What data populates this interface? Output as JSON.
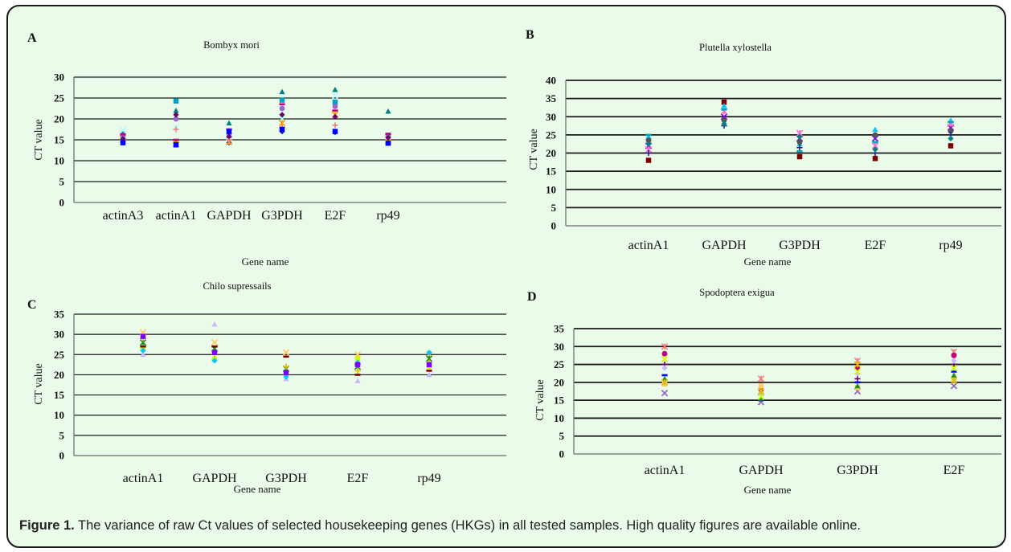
{
  "caption": {
    "label": "Figure 1.",
    "text": " The variance of raw Ct values of selected housekeeping genes (HKGs) in all tested samples. High quality figures are available online."
  },
  "colors": {
    "background": "#eafbea",
    "border": "#1a1a1a",
    "markers": [
      "#1f1f8f",
      "#c0007f",
      "#e0c000",
      "#00a0c0",
      "#6a006a",
      "#7a0000",
      "#008080",
      "#0000ff",
      "#00c8ff",
      "#b0ffff",
      "#c8b8ff",
      "#7f00ff",
      "#ff9900",
      "#ffcc66",
      "#ff66cc",
      "#9966cc",
      "#228b22",
      "#555555",
      "#f08080",
      "#ccff00"
    ]
  },
  "chart_data": [
    {
      "panel": "A",
      "type": "scatter",
      "title": "Bombyx mori",
      "xlabel": "Gene name",
      "ylabel": "CT value",
      "ylim": [
        0,
        30
      ],
      "yticks": [
        0,
        5,
        10,
        15,
        20,
        25,
        30
      ],
      "grid": true,
      "categories": [
        "actinA3",
        "actinA1",
        "GAPDH",
        "G3PDH",
        "E2F",
        "rp49"
      ],
      "series": [
        {
          "values": [
            14.5,
            14.2,
            14.3,
            17.0,
            16.8,
            14.8
          ]
        },
        {
          "values": [
            15.0,
            24.3,
            16.0,
            24.5,
            24.0,
            16.1
          ]
        },
        {
          "values": [
            16.8,
            22.0,
            19.0,
            26.5,
            27.0,
            21.8
          ]
        },
        {
          "values": [
            17.3,
            18.0,
            15.5,
            20.0,
            25.5,
            15.2
          ]
        },
        {
          "values": [
            15.5,
            14.0,
            14.5,
            19.0,
            21.0,
            14.5
          ]
        },
        {
          "values": [
            16.0,
            20.0,
            16.5,
            22.5,
            23.0,
            15.8
          ]
        },
        {
          "values": [
            14.8,
            17.5,
            15.0,
            18.0,
            18.5,
            14.3
          ]
        },
        {
          "values": [
            16.3,
            15.0,
            17.5,
            23.5,
            22.0,
            16.4
          ]
        },
        {
          "values": [
            15.2,
            21.0,
            15.8,
            21.0,
            20.5,
            15.5
          ]
        },
        {
          "values": [
            14.3,
            13.8,
            17.0,
            17.5,
            17.0,
            14.2
          ]
        }
      ]
    },
    {
      "panel": "B",
      "type": "scatter",
      "title": "Plutella xylostella",
      "xlabel": "Gene name",
      "ylabel": "CT value",
      "ylim": [
        0,
        40
      ],
      "yticks": [
        0,
        5,
        10,
        15,
        20,
        25,
        30,
        35,
        40
      ],
      "grid": true,
      "categories": [
        "actinA1",
        "GAPDH",
        "G3PDH",
        "E2F",
        "rp49"
      ],
      "series": [
        {
          "values": [
            18.0,
            34.0,
            19.0,
            18.5,
            22.0
          ]
        },
        {
          "values": [
            24.5,
            33.0,
            22.5,
            26.5,
            29.0
          ]
        },
        {
          "values": [
            22.0,
            30.0,
            24.0,
            24.0,
            27.0
          ]
        },
        {
          "values": [
            21.0,
            31.5,
            25.5,
            22.0,
            28.0
          ]
        },
        {
          "values": [
            23.5,
            29.0,
            23.0,
            25.0,
            26.0
          ]
        },
        {
          "values": [
            20.0,
            27.5,
            21.5,
            20.0,
            25.0
          ]
        },
        {
          "values": [
            25.0,
            32.0,
            20.5,
            23.0,
            28.5
          ]
        },
        {
          "values": [
            22.5,
            28.0,
            24.5,
            21.0,
            24.0
          ]
        }
      ]
    },
    {
      "panel": "C",
      "type": "scatter",
      "title": "Chilo supressails",
      "xlabel": "Gene name",
      "ylabel": "CT value",
      "ylim": [
        0,
        35
      ],
      "yticks": [
        0,
        5,
        10,
        15,
        20,
        25,
        30,
        35
      ],
      "grid": true,
      "categories": [
        "actinA1",
        "GAPDH",
        "G3PDH",
        "E2F",
        "rp49"
      ],
      "series": [
        {
          "values": [
            25.0,
            32.5,
            19.0,
            18.5,
            20.0
          ]
        },
        {
          "values": [
            30.5,
            28.0,
            25.5,
            25.0,
            25.0
          ]
        },
        {
          "values": [
            28.0,
            26.5,
            21.5,
            22.0,
            24.0
          ]
        },
        {
          "values": [
            26.5,
            24.0,
            20.0,
            24.0,
            22.0
          ]
        },
        {
          "values": [
            29.0,
            25.0,
            22.0,
            21.0,
            23.0
          ]
        },
        {
          "values": [
            27.0,
            27.0,
            24.5,
            20.0,
            21.0
          ]
        },
        {
          "values": [
            26.0,
            23.5,
            19.5,
            23.0,
            25.5
          ]
        },
        {
          "values": [
            29.5,
            25.5,
            20.5,
            22.5,
            22.5
          ]
        }
      ]
    },
    {
      "panel": "D",
      "type": "scatter",
      "title": "Spodoptera exigua",
      "xlabel": "Gene name",
      "ylabel": "CT value",
      "ylim": [
        0,
        35
      ],
      "yticks": [
        0,
        5,
        10,
        15,
        20,
        25,
        30,
        35
      ],
      "grid": true,
      "categories": [
        "actinA1",
        "GAPDH",
        "G3PDH",
        "E2F"
      ],
      "series": [
        {
          "values": [
            17.0,
            14.5,
            17.5,
            19.0
          ]
        },
        {
          "values": [
            30.0,
            21.0,
            26.0,
            28.5
          ]
        },
        {
          "values": [
            28.0,
            18.0,
            24.0,
            27.5
          ]
        },
        {
          "values": [
            25.0,
            16.5,
            21.0,
            25.0
          ]
        },
        {
          "values": [
            22.0,
            15.0,
            20.0,
            23.0
          ]
        },
        {
          "values": [
            24.0,
            17.0,
            22.5,
            26.0
          ]
        },
        {
          "values": [
            19.5,
            19.0,
            18.5,
            21.0
          ]
        },
        {
          "values": [
            21.0,
            15.5,
            19.0,
            22.0
          ]
        },
        {
          "values": [
            26.5,
            16.0,
            23.0,
            24.0
          ]
        },
        {
          "values": [
            20.0,
            17.5,
            25.0,
            20.5
          ]
        }
      ]
    }
  ]
}
